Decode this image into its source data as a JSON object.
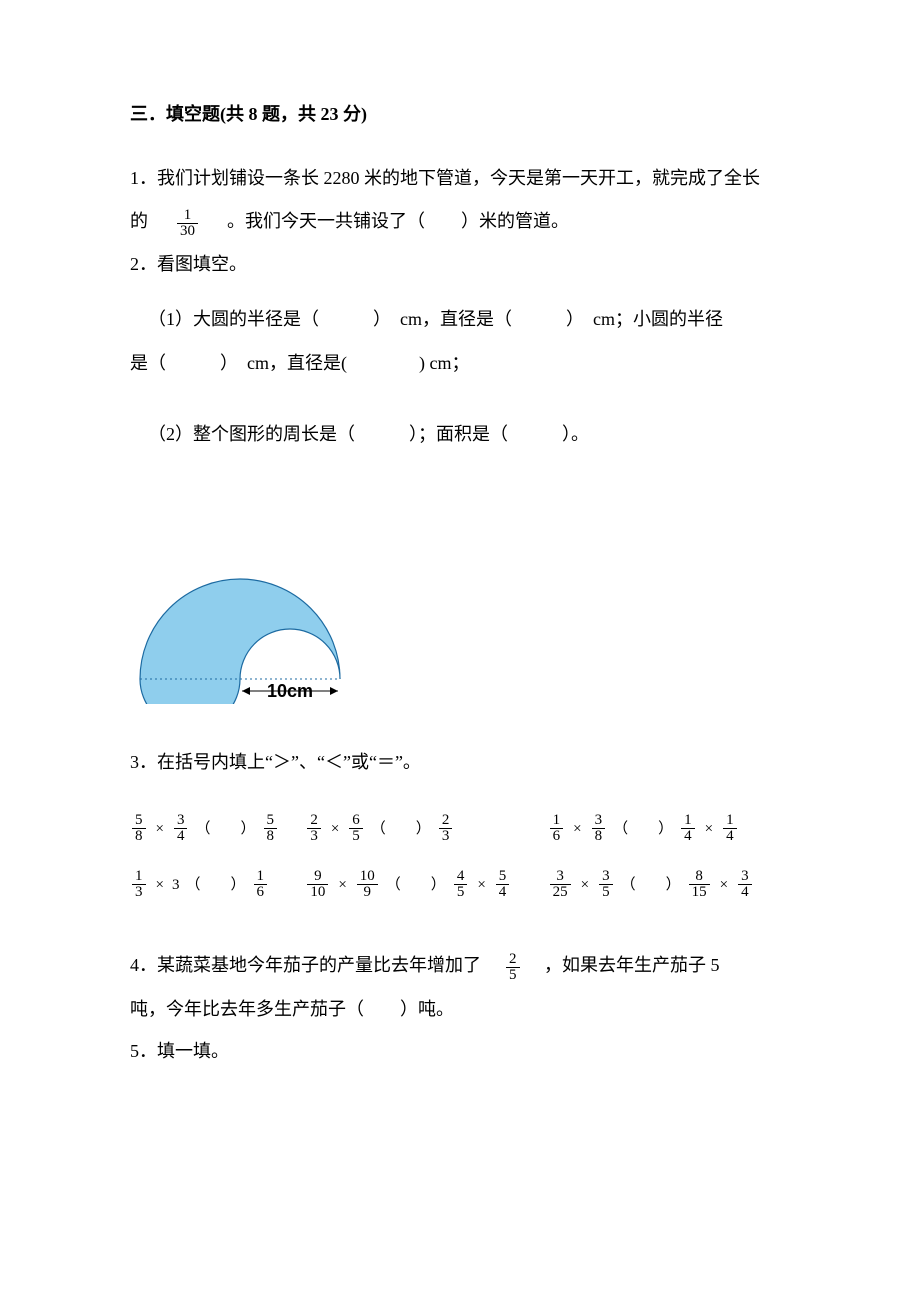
{
  "section": {
    "header": "三．填空题(共 8 题，共 23 分)"
  },
  "q1": {
    "prefix": "1．我们计划铺设一条长 2280 米的地下管道，今天是第一天开工，就完成了全长",
    "line2_before": "的",
    "frac_num": "1",
    "frac_den": "30",
    "line2_after": "。我们今天一共铺设了（　　）米的管道。"
  },
  "q2": {
    "header": "2．看图填空。",
    "part1": "（1）大圆的半径是（　　　）　cm，直径是（　　　）　cm；小圆的半径",
    "part1b": "是（　　　）　cm，直径是(　　　　) cm；",
    "part2": "（2）整个图形的周长是（　　　）；面积是（　　　）。",
    "figure": {
      "outer_radius": 100,
      "inner_radius": 50,
      "fill": "#8fceed",
      "stroke": "#1c6aa1",
      "inner_fill": "#ffffff",
      "label": "10cm",
      "label_fontsize": 18,
      "label_weight": "bold",
      "line_color": "#1c6aa1"
    }
  },
  "q3": {
    "header": "3．在括号内填上“＞”、“＜”或“＝”。",
    "rows": [
      [
        {
          "l": {
            "a": "5",
            "b": "8",
            "op": "×",
            "c": "3",
            "d": "4"
          },
          "r": {
            "a": "5",
            "b": "8"
          }
        },
        {
          "l": {
            "a": "2",
            "b": "3",
            "op": "×",
            "c": "6",
            "d": "5"
          },
          "r": {
            "a": "2",
            "b": "3"
          }
        },
        {
          "l": {
            "a": "1",
            "b": "6",
            "op": "×",
            "c": "3",
            "d": "8"
          },
          "r": {
            "a": "1",
            "b": "4",
            "op": "×",
            "c": "1",
            "d": "4"
          }
        }
      ],
      [
        {
          "l": {
            "a": "1",
            "b": "3",
            "op": "×",
            "int": "3"
          },
          "r": {
            "a": "1",
            "b": "6"
          }
        },
        {
          "l": {
            "a": "9",
            "b": "10",
            "op": "×",
            "c": "10",
            "d": "9"
          },
          "r": {
            "a": "4",
            "b": "5",
            "op": "×",
            "c": "5",
            "d": "4"
          }
        },
        {
          "l": {
            "a": "3",
            "b": "25",
            "op": "×",
            "c": "3",
            "d": "5"
          },
          "r": {
            "a": "8",
            "b": "15",
            "op": "×",
            "c": "3",
            "d": "4"
          }
        }
      ]
    ],
    "paren_open": "（",
    "paren_close": "）"
  },
  "q4": {
    "line1_before": "4．某蔬菜基地今年茄子的产量比去年增加了",
    "frac_num": "2",
    "frac_den": "5",
    "line1_after": "　，如果去年生产茄子 5",
    "line2": "吨，今年比去年多生产茄子（　　）吨。"
  },
  "q5": {
    "header": "5．填一填。"
  }
}
